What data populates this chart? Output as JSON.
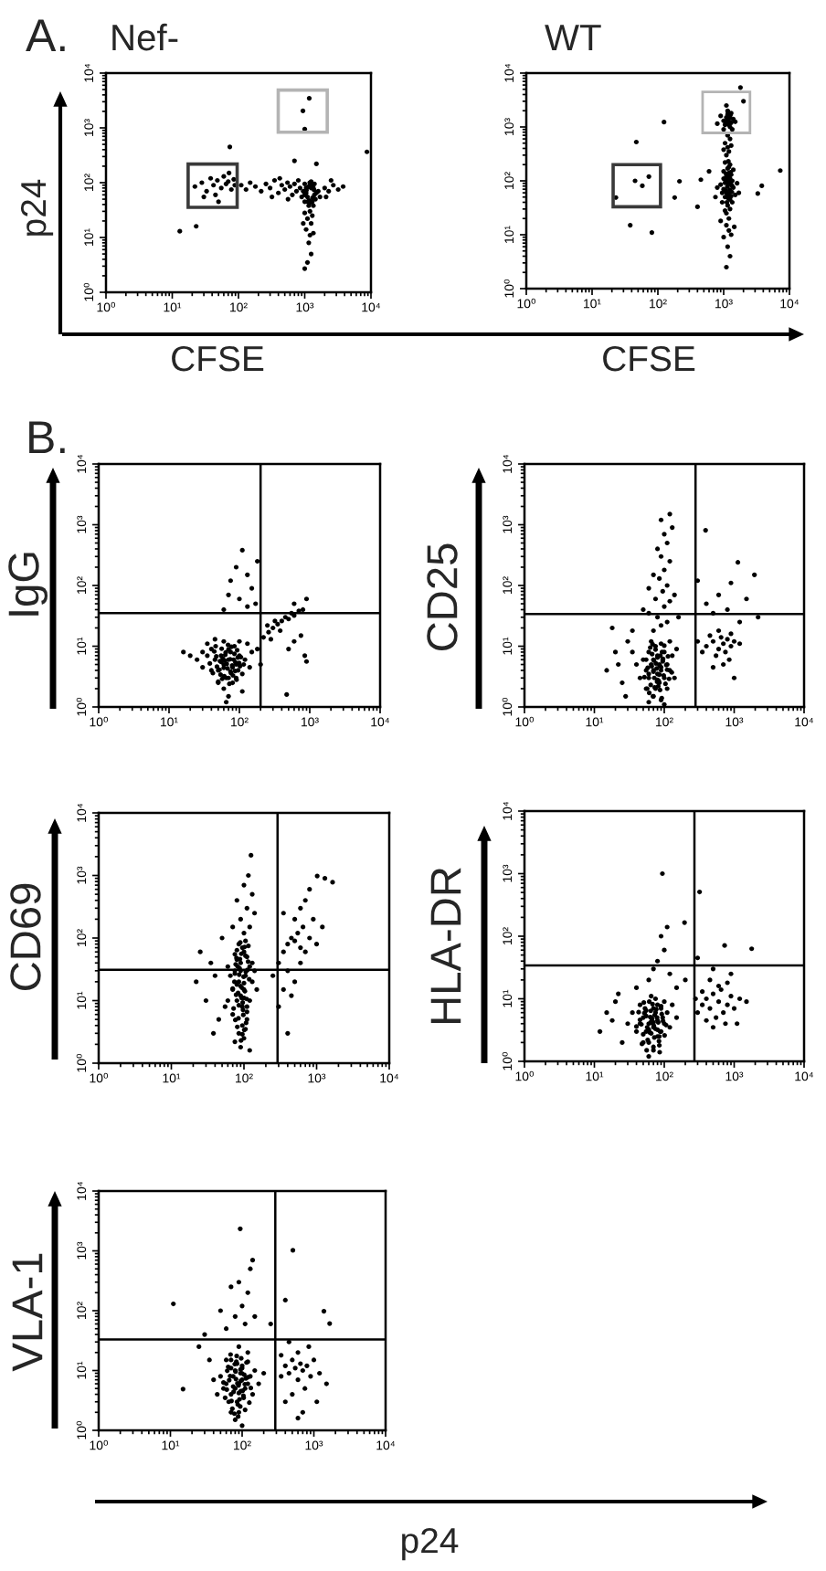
{
  "chart_data": [
    {
      "type": "scatter",
      "title": "Nef-",
      "xlabel": "CFSE",
      "ylabel": "p24",
      "annotations": [
        "A."
      ],
      "log": "xy",
      "marker": "circle",
      "xlim": [
        1,
        10000
      ],
      "ylim": [
        1,
        10000
      ],
      "xticks": [
        {
          "value": 1,
          "label": "10⁰"
        },
        {
          "value": 10,
          "label": "10¹"
        },
        {
          "value": 100,
          "label": "10²"
        },
        {
          "value": 1000,
          "label": "10³"
        },
        {
          "value": 10000,
          "label": "10⁴"
        }
      ],
      "yticks": [
        {
          "value": 1,
          "label": "10⁰"
        },
        {
          "value": 10,
          "label": "10¹"
        },
        {
          "value": 100,
          "label": "10²"
        },
        {
          "value": 1000,
          "label": "10³"
        },
        {
          "value": 10000,
          "label": "10⁴"
        }
      ],
      "series": [
        {
          "color": "#000000",
          "x": [
            1000,
            1100,
            1400,
            950,
            1050,
            1350,
            1500,
            1200,
            1100,
            1300,
            1600,
            900,
            1000,
            1400,
            1250,
            1150,
            1350,
            1700,
            850,
            1200,
            1050,
            1450,
            1250,
            1000,
            1100,
            1250,
            1050,
            1200,
            1300,
            1000,
            1150,
            1250,
            1100,
            1000,
            1350,
            950,
            110,
            130,
            150,
            180,
            220,
            260,
            300,
            350,
            400,
            450,
            500,
            550,
            600,
            650,
            700,
            750,
            800,
            420,
            560,
            320,
            22,
            28,
            33,
            38,
            42,
            48,
            55,
            60,
            65,
            70,
            78,
            85,
            30,
            45,
            72,
            50,
            88,
            2000,
            2300,
            2700,
            3200,
            3800,
            2100,
            2500,
            13,
            23,
            74,
            8700,
            940,
            1000,
            1170,
            700,
            1500,
            1380,
            1130,
            1210,
            1290,
            1060,
            1170,
            1310,
            1190
          ],
          "values": [
            60,
            55,
            60,
            70,
            80,
            80,
            65,
            90,
            45,
            45,
            70,
            55,
            95,
            95,
            105,
            38,
            38,
            55,
            80,
            30,
            65,
            50,
            80,
            45,
            22,
            18,
            14,
            11,
            25,
            28,
            8,
            5,
            3.5,
            2.7,
            12,
            18,
            90,
            75,
            100,
            85,
            70,
            95,
            80,
            110,
            65,
            90,
            75,
            100,
            85,
            60,
            95,
            70,
            110,
            120,
            50,
            55,
            85,
            100,
            70,
            120,
            90,
            110,
            80,
            130,
            95,
            105,
            75,
            115,
            55,
            60,
            150,
            45,
            90,
            80,
            70,
            90,
            75,
            85,
            55,
            110,
            13,
            16,
            450,
            365,
            2050,
            950,
            3460,
            250,
            220,
            74,
            84,
            43,
            88,
            73,
            47,
            53,
            100
          ]
        }
      ]
    },
    {
      "type": "scatter",
      "title": "WT",
      "xlabel": "CFSE",
      "log": "xy",
      "marker": "circle",
      "xlim": [
        1,
        10000
      ],
      "ylim": [
        1,
        10000
      ],
      "xticks": [
        {
          "value": 1,
          "label": "10⁰"
        },
        {
          "value": 10,
          "label": "10¹"
        },
        {
          "value": 100,
          "label": "10²"
        },
        {
          "value": 1000,
          "label": "10³"
        },
        {
          "value": 10000,
          "label": "10⁴"
        }
      ],
      "yticks": [
        {
          "value": 1,
          "label": "10⁰"
        },
        {
          "value": 10,
          "label": "10¹"
        },
        {
          "value": 100,
          "label": "10²"
        },
        {
          "value": 1000,
          "label": "10³"
        },
        {
          "value": 10000,
          "label": "10⁴"
        }
      ],
      "series": [
        {
          "color": "#000000",
          "x": [
            1000,
            1100,
            1150,
            1050,
            1250,
            1400,
            900,
            950,
            1350,
            1100,
            1200,
            1000,
            1300,
            1150,
            1250,
            1050,
            1500,
            800,
            1600,
            1700,
            750,
            1150,
            1250,
            1050,
            1350,
            950,
            1100,
            1200,
            1400,
            1000,
            1300,
            1150,
            1250,
            1100,
            1200,
            1000,
            1300,
            1150,
            1250,
            1100,
            900,
            1450,
            1100,
            1200,
            1150,
            1050,
            1250,
            1150,
            1000,
            1300,
            1000,
            1100,
            1300,
            1150,
            1050,
            1250,
            900,
            1400,
            1150,
            1000,
            1300,
            1200,
            1500,
            800,
            1100,
            1350,
            45,
            58,
            73,
            23,
            47,
            124,
            38,
            81,
            180,
            213,
            450,
            3800,
            7250,
            3300,
            1800,
            400,
            600,
            2000,
            1080,
            1140,
            1190,
            1230,
            1330,
            1110,
            1170,
            1220,
            1050,
            1240,
            1300,
            1120,
            1200,
            1270,
            1090,
            1180,
            1350,
            1080,
            1140,
            1240,
            1120,
            1200,
            1160,
            1260
          ],
          "values": [
            70,
            60,
            90,
            50,
            45,
            75,
            85,
            60,
            100,
            120,
            140,
            110,
            130,
            35,
            30,
            28,
            55,
            75,
            90,
            60,
            50,
            170,
            200,
            220,
            40,
            40,
            25,
            20,
            160,
            150,
            85,
            55,
            110,
            15,
            12,
            9,
            10,
            6,
            4,
            2.5,
            18,
            14,
            300,
            350,
            420,
            500,
            600,
            700,
            380,
            450,
            1300,
            1500,
            1200,
            1700,
            1100,
            1000,
            1600,
            1400,
            2000,
            900,
            1800,
            1100,
            1250,
            1150,
            2500,
            900,
            100,
            81,
            120,
            49,
            525,
            1230,
            15,
            11,
            49,
            98,
            105,
            81,
            155,
            58,
            5400,
            33,
            150,
            3000,
            66,
            78,
            58,
            95,
            62,
            105,
            48,
            125,
            92,
            68,
            52,
            40,
            180,
            145,
            135,
            230,
            80,
            1250,
            1350,
            1450,
            1150,
            1250,
            1900,
            1650
          ]
        }
      ]
    },
    {
      "type": "scatter",
      "ylabel": "IgG",
      "annotations": [
        "B."
      ],
      "log": "xy",
      "marker": "circle",
      "xlim": [
        1,
        10000
      ],
      "ylim": [
        1,
        10000
      ],
      "xticks": [
        {
          "value": 1,
          "label": "10⁰"
        },
        {
          "value": 10,
          "label": "10¹"
        },
        {
          "value": 100,
          "label": "10²"
        },
        {
          "value": 1000,
          "label": "10³"
        },
        {
          "value": 10000,
          "label": "10⁴"
        }
      ],
      "yticks": [
        {
          "value": 1,
          "label": "10⁰"
        },
        {
          "value": 10,
          "label": "10¹"
        },
        {
          "value": 100,
          "label": "10²"
        },
        {
          "value": 1000,
          "label": "10³"
        },
        {
          "value": 10000,
          "label": "10⁴"
        }
      ],
      "ref_lines": [
        {
          "axis": "x",
          "value": 200,
          "color": "#000000"
        },
        {
          "axis": "y",
          "value": 35,
          "color": "#000000"
        }
      ],
      "series": [
        {
          "color": "#000000",
          "x": [
            50,
            60,
            70,
            80,
            65,
            55,
            75,
            45,
            90,
            100,
            40,
            35,
            30,
            25,
            120,
            150,
            180,
            60,
            70,
            80,
            50,
            90,
            110,
            65,
            40,
            30,
            85,
            60,
            45,
            100,
            130,
            20,
            16,
            110,
            140,
            75,
            55,
            95,
            200,
            35,
            220,
            260,
            300,
            350,
            400,
            450,
            500,
            550,
            600,
            700,
            800,
            320,
            280,
            380,
            250,
            850,
            900,
            470,
            600,
            750,
            500,
            75,
            90,
            110,
            130,
            150,
            100,
            70,
            130,
            170,
            60,
            180,
            600,
            900,
            38,
            42,
            47,
            52,
            57,
            62,
            68,
            74,
            81,
            88,
            96,
            105,
            115,
            44,
            50,
            56,
            63,
            70,
            77,
            85,
            93,
            102,
            48,
            54,
            60,
            66,
            72,
            79,
            87,
            58,
            64,
            70,
            76,
            53,
            61,
            69,
            83,
            91,
            99,
            46
          ],
          "values": [
            4,
            5,
            6,
            4.5,
            3,
            7,
            8,
            6,
            5,
            7,
            9,
            7,
            8,
            6,
            6,
            8,
            9,
            2,
            1.5,
            2.5,
            2.5,
            3,
            3.5,
            1.2,
            4,
            4.5,
            10,
            12,
            13,
            12,
            11,
            7,
            8,
            1.8,
            4.5,
            3.8,
            5.5,
            6.5,
            5,
            11,
            14,
            17,
            20,
            23,
            26,
            30,
            28,
            35,
            32,
            38,
            40,
            26,
            13,
            18,
            22,
            7,
            5.6,
            1.6,
            12,
            15,
            9,
            120,
            200,
            380,
            150,
            90,
            60,
            70,
            45,
            50,
            40,
            250,
            50,
            60,
            5.2,
            3.6,
            6.8,
            4.1,
            2.9,
            5.8,
            4.3,
            6.1,
            3.3,
            5.4,
            4.0,
            6.6,
            5.0,
            8.2,
            2.6,
            9.1,
            7.2,
            3.0,
            9.8,
            7.5,
            8.6,
            4.7,
            4.6,
            3.4,
            4.4,
            5.1,
            2.4,
            4.8,
            3.9,
            6.3,
            7.9,
            8.8,
            3.6,
            5.7,
            3.2,
            10.5,
            6.0,
            2.8,
            5.3,
            10.0
          ]
        }
      ]
    },
    {
      "type": "scatter",
      "ylabel": "CD25",
      "log": "xy",
      "marker": "circle",
      "xlim": [
        1,
        10000
      ],
      "ylim": [
        1,
        10000
      ],
      "xticks": [
        {
          "value": 1,
          "label": "10⁰"
        },
        {
          "value": 10,
          "label": "10¹"
        },
        {
          "value": 100,
          "label": "10²"
        },
        {
          "value": 1000,
          "label": "10³"
        },
        {
          "value": 10000,
          "label": "10⁴"
        }
      ],
      "yticks": [
        {
          "value": 1,
          "label": "10⁰"
        },
        {
          "value": 10,
          "label": "10¹"
        },
        {
          "value": 100,
          "label": "10²"
        },
        {
          "value": 1000,
          "label": "10³"
        },
        {
          "value": 10000,
          "label": "10⁴"
        }
      ],
      "ref_lines": [
        {
          "axis": "x",
          "value": 280,
          "color": "#000000"
        },
        {
          "axis": "y",
          "value": 34,
          "color": "#000000"
        }
      ],
      "series": [
        {
          "color": "#000000",
          "x": [
            60,
            70,
            80,
            90,
            100,
            75,
            85,
            65,
            95,
            110,
            120,
            55,
            50,
            45,
            70,
            90,
            80,
            100,
            60,
            130,
            140,
            110,
            55,
            75,
            90,
            65,
            120,
            40,
            35,
            150,
            85,
            70,
            100,
            60,
            80,
            70,
            90,
            110,
            80,
            60,
            100,
            120,
            75,
            95,
            110,
            85,
            70,
            100,
            120,
            90,
            80,
            110,
            100,
            130,
            90,
            120,
            60,
            140,
            50,
            160,
            15,
            20,
            25,
            30,
            22,
            35,
            28,
            18,
            400,
            500,
            600,
            700,
            800,
            900,
            650,
            550,
            750,
            1000,
            450,
            350,
            850,
            1200,
            300,
            700,
            600,
            900,
            500,
            1000,
            390,
            1950,
            1130,
            400,
            600,
            800,
            1500,
            300,
            900,
            2200,
            500,
            1200,
            52,
            58,
            64,
            70,
            76,
            83,
            90,
            98,
            107,
            117,
            128,
            55,
            61,
            67,
            73,
            80,
            87,
            95,
            104,
            113,
            60,
            66,
            72,
            78,
            85,
            93,
            69,
            75,
            82,
            88,
            63,
            92,
            100,
            71,
            79,
            86,
            57,
            110,
            68,
            96
          ],
          "values": [
            3,
            4,
            3.5,
            4.5,
            3,
            2,
            2.5,
            5,
            6,
            5,
            4,
            4,
            6,
            3,
            1.5,
            1.3,
            7,
            8,
            8,
            7,
            3,
            2,
            2,
            10,
            11,
            12,
            12,
            5,
            8,
            9,
            5,
            6,
            1.1,
            1.2,
            2.8,
            18,
            22,
            25,
            30,
            35,
            45,
            55,
            60,
            80,
            100,
            130,
            150,
            180,
            250,
            300,
            400,
            500,
            700,
            900,
            1200,
            1500,
            90,
            70,
            40,
            30,
            4,
            8,
            2.5,
            12,
            5,
            18,
            1.5,
            20,
            10,
            12,
            9,
            11,
            13,
            10,
            14,
            7,
            8,
            12,
            15,
            8,
            6,
            11,
            12,
            5,
            18,
            16,
            4.5,
            3,
            810,
            150,
            240,
            50,
            70,
            40,
            60,
            120,
            110,
            30,
            35,
            25,
            3.1,
            4.4,
            2.3,
            3.8,
            5.2,
            2.7,
            4.0,
            3.3,
            4.9,
            2.9,
            3.7,
            6.0,
            1.7,
            7.4,
            2.1,
            6.5,
            1.9,
            5.6,
            2.4,
            6.8,
            3.5,
            4.7,
            3.0,
            4.3,
            3.4,
            8.0,
            1.5,
            8.8,
            2.2,
            7.0,
            9.5,
            1.4,
            10.2,
            5.8,
            2.6,
            4.8,
            2.0,
            4.1,
            10.8,
            6.2
          ]
        }
      ]
    },
    {
      "type": "scatter",
      "ylabel": "CD69",
      "log": "xy",
      "marker": "circle",
      "xlim": [
        1,
        10000
      ],
      "ylim": [
        1,
        10000
      ],
      "xticks": [
        {
          "value": 1,
          "label": "10⁰"
        },
        {
          "value": 10,
          "label": "10¹"
        },
        {
          "value": 100,
          "label": "10²"
        },
        {
          "value": 1000,
          "label": "10³"
        },
        {
          "value": 10000,
          "label": "10⁴"
        }
      ],
      "yticks": [
        {
          "value": 1,
          "label": "10⁰"
        },
        {
          "value": 10,
          "label": "10¹"
        },
        {
          "value": 100,
          "label": "10²"
        },
        {
          "value": 1000,
          "label": "10³"
        },
        {
          "value": 10000,
          "label": "10⁴"
        }
      ],
      "ref_lines": [
        {
          "axis": "x",
          "value": 290,
          "color": "#000000"
        },
        {
          "axis": "y",
          "value": 31,
          "color": "#000000"
        }
      ],
      "series": [
        {
          "color": "#000000",
          "x": [
            90,
            80,
            100,
            110,
            70,
            95,
            85,
            105,
            75,
            90,
            110,
            100,
            80,
            120,
            130,
            70,
            60,
            65,
            85,
            100,
            90,
            110,
            120,
            130,
            95,
            85,
            105,
            115,
            75,
            60,
            140,
            150,
            55,
            100,
            90,
            80,
            120,
            75,
            105,
            95,
            100,
            120,
            90,
            110,
            130,
            100,
            115,
            125,
            80,
            140,
            70,
            300,
            350,
            400,
            450,
            500,
            550,
            600,
            650,
            700,
            800,
            900,
            400,
            500,
            600,
            350,
            450,
            1000,
            1200,
            700,
            800,
            1020,
            1660,
            1300,
            600,
            350,
            500,
            250,
            300,
            400,
            22,
            30,
            35,
            40,
            45,
            25,
            50,
            38,
            72,
            78,
            84,
            90,
            96,
            103,
            110,
            118,
            75,
            81,
            87,
            93,
            100,
            107,
            114,
            70,
            77,
            85,
            92,
            99,
            106,
            80,
            88,
            95,
            102,
            74,
            83,
            91,
            98,
            109,
            86,
            94,
            79,
            101,
            89,
            97,
            82,
            105,
            76,
            112
          ],
          "values": [
            12,
            10,
            15,
            8,
            6,
            4,
            20,
            25,
            30,
            40,
            50,
            60,
            45,
            35,
            20,
            15,
            10,
            25,
            3,
            2.5,
            1.8,
            5,
            10,
            40,
            70,
            80,
            90,
            75,
            55,
            35,
            30,
            15,
            8,
            11,
            30,
            18,
            1.6,
            2.2,
            3.5,
            8,
            120,
            150,
            200,
            300,
            500,
            700,
            1000,
            2100,
            400,
            250,
            150,
            40,
            60,
            80,
            100,
            90,
            120,
            70,
            150,
            60,
            100,
            200,
            30,
            20,
            40,
            15,
            12,
            80,
            150,
            400,
            600,
            980,
            780,
            900,
            300,
            250,
            200,
            25,
            8,
            3,
            20,
            10,
            40,
            25,
            5,
            60,
            100,
            3,
            7.5,
            12.4,
            5.2,
            17,
            9.3,
            14.1,
            6.6,
            22,
            27,
            3.8,
            33,
            11,
            19,
            4.4,
            42,
            15.6,
            38,
            8.4,
            56,
            24,
            29,
            64,
            46,
            2.9,
            72,
            20,
            13.3,
            2.3,
            5.9,
            10.6,
            26,
            16,
            48,
            3.4,
            85,
            7.1,
            35,
            52,
            4.9,
            31
          ]
        }
      ]
    },
    {
      "type": "scatter",
      "ylabel": "HLA-DR",
      "log": "xy",
      "marker": "circle",
      "xlim": [
        1,
        10000
      ],
      "ylim": [
        1,
        10000
      ],
      "xticks": [
        {
          "value": 1,
          "label": "10⁰"
        },
        {
          "value": 10,
          "label": "10¹"
        },
        {
          "value": 100,
          "label": "10²"
        },
        {
          "value": 1000,
          "label": "10³"
        },
        {
          "value": 10000,
          "label": "10⁴"
        }
      ],
      "yticks": [
        {
          "value": 1,
          "label": "10⁰"
        },
        {
          "value": 10,
          "label": "10¹"
        },
        {
          "value": 100,
          "label": "10²"
        },
        {
          "value": 1000,
          "label": "10³"
        },
        {
          "value": 10000,
          "label": "10⁴"
        }
      ],
      "ref_lines": [
        {
          "axis": "x",
          "value": 270,
          "color": "#000000"
        },
        {
          "axis": "y",
          "value": 34,
          "color": "#000000"
        }
      ],
      "series": [
        {
          "color": "#000000",
          "x": [
            60,
            70,
            80,
            55,
            65,
            75,
            90,
            50,
            85,
            60,
            70,
            95,
            45,
            100,
            80,
            65,
            55,
            110,
            40,
            90,
            70,
            60,
            85,
            50,
            120,
            100,
            75,
            35,
            130,
            45,
            65,
            80,
            70,
            150,
            30,
            300,
            350,
            400,
            450,
            500,
            550,
            600,
            650,
            700,
            800,
            900,
            1000,
            750,
            500,
            400,
            1200,
            600,
            800,
            1500,
            350,
            280,
            450,
            1100,
            80,
            100,
            90,
            70,
            110,
            60,
            120,
            150,
            200,
            40,
            94,
            320,
            195,
            1780,
            730,
            500,
            300,
            900,
            12,
            15,
            20,
            25,
            18,
            22,
            40,
            45,
            50,
            55,
            60,
            66,
            72,
            79,
            87,
            96,
            106,
            43,
            48,
            53,
            58,
            64,
            70,
            77,
            84,
            92,
            101,
            47,
            52,
            57,
            62,
            68,
            75,
            82,
            90,
            56,
            61,
            67,
            73,
            51,
            65,
            80,
            71,
            86,
            63
          ],
          "values": [
            4,
            3.5,
            4.5,
            3,
            5,
            6,
            3,
            5,
            2.5,
            2,
            7,
            5,
            4,
            4,
            8,
            2.8,
            6.5,
            6,
            3,
            7,
            1.5,
            1.2,
            1.8,
            2,
            3.5,
            9,
            10,
            6,
            8,
            8,
            11,
            3.2,
            4.2,
            5,
            4,
            6,
            8,
            10,
            7,
            12,
            5,
            9,
            14,
            6,
            8,
            11,
            7,
            4,
            3.5,
            4.5,
            10,
            16,
            18,
            9,
            13,
            10,
            20,
            4,
            40,
            60,
            100,
            30,
            140,
            20,
            25,
            15,
            20,
            15,
            1000,
            510,
            165,
            63,
            71,
            30,
            45,
            25,
            3,
            6,
            9,
            2,
            4.5,
            12,
            3.6,
            4.6,
            2.7,
            5.3,
            3.2,
            4.1,
            2.4,
            5.0,
            3.0,
            4.4,
            3.8,
            6.1,
            1.9,
            7.0,
            2.2,
            6.4,
            1.7,
            6.8,
            2.1,
            5.7,
            2.6,
            3.9,
            5.9,
            3.5,
            2.9,
            8.2,
            3.3,
            4.2,
            7.6,
            1.5,
            9.0,
            4.8,
            5.5,
            8.7,
            4.3,
            2.5,
            3.7,
            1.4,
            5.1
          ]
        }
      ]
    },
    {
      "type": "scatter",
      "ylabel": "VLA-1",
      "xlabel": "p24",
      "log": "xy",
      "marker": "circle",
      "xlim": [
        1,
        10000
      ],
      "ylim": [
        1,
        10000
      ],
      "xticks": [
        {
          "value": 1,
          "label": "10⁰"
        },
        {
          "value": 10,
          "label": "10¹"
        },
        {
          "value": 100,
          "label": "10²"
        },
        {
          "value": 1000,
          "label": "10³"
        },
        {
          "value": 10000,
          "label": "10⁴"
        }
      ],
      "yticks": [
        {
          "value": 1,
          "label": "10⁰"
        },
        {
          "value": 10,
          "label": "10¹"
        },
        {
          "value": 100,
          "label": "10²"
        },
        {
          "value": 1000,
          "label": "10³"
        },
        {
          "value": 10000,
          "label": "10⁴"
        }
      ],
      "ref_lines": [
        {
          "axis": "x",
          "value": 290,
          "color": "#000000"
        },
        {
          "axis": "y",
          "value": 33,
          "color": "#000000"
        }
      ],
      "series": [
        {
          "color": "#000000",
          "x": [
            80,
            90,
            100,
            70,
            110,
            85,
            95,
            75,
            120,
            60,
            65,
            105,
            90,
            80,
            100,
            130,
            140,
            55,
            50,
            70,
            100,
            120,
            85,
            60,
            150,
            45,
            40,
            110,
            70,
            170,
            200,
            95,
            80,
            120,
            90,
            350,
            400,
            450,
            500,
            550,
            600,
            650,
            700,
            800,
            900,
            1000,
            750,
            600,
            500,
            400,
            1200,
            850,
            700,
            450,
            1500,
            350,
            1100,
            600,
            60,
            80,
            100,
            120,
            90,
            130,
            70,
            150,
            110,
            50,
            140,
            94,
            510,
            11,
            15,
            1380,
            1660,
            400,
            250,
            30,
            35,
            25,
            55,
            61,
            68,
            75,
            82,
            90,
            99,
            109,
            120,
            132,
            58,
            64,
            71,
            79,
            87,
            95,
            104,
            115,
            126,
            66,
            73,
            81,
            89,
            97,
            107,
            70,
            78,
            86,
            94,
            102,
            62,
            84,
            92,
            100,
            76,
            113,
            88,
            96,
            69,
            83
          ],
          "values": [
            5,
            6,
            7,
            4,
            5,
            3,
            9,
            8,
            6,
            6,
            3,
            3.5,
            2,
            1.5,
            1.2,
            8,
            4,
            5,
            8,
            11,
            12,
            14,
            13,
            15,
            10,
            4,
            7,
            2.2,
            2,
            6,
            9,
            4.5,
            10,
            20,
            25,
            8,
            12,
            9,
            15,
            11,
            7,
            13,
            10,
            12,
            8,
            15,
            5,
            20,
            4,
            3,
            9,
            25,
            2,
            30,
            6,
            18,
            3,
            1.6,
            50,
            80,
            120,
            200,
            300,
            500,
            250,
            80,
            60,
            100,
            700,
            2340,
            1020,
            130,
            4.9,
            98,
            61,
            150,
            60,
            40,
            15,
            25,
            6.3,
            4.8,
            8.1,
            5.4,
            7.2,
            4.2,
            9.0,
            5.9,
            7.7,
            5.1,
            3.5,
            11.5,
            3.1,
            12.8,
            2.7,
            10.4,
            3.8,
            13.6,
            2.9,
            6.9,
            2.3,
            9.6,
            5.6,
            16,
            8.5,
            15,
            1.9,
            6.1,
            2.5,
            4.6,
            9.9,
            17.5,
            3.3,
            11,
            4.4,
            7.4,
            1.7,
            6.7,
            18.5,
            14
          ]
        }
      ]
    }
  ]
}
